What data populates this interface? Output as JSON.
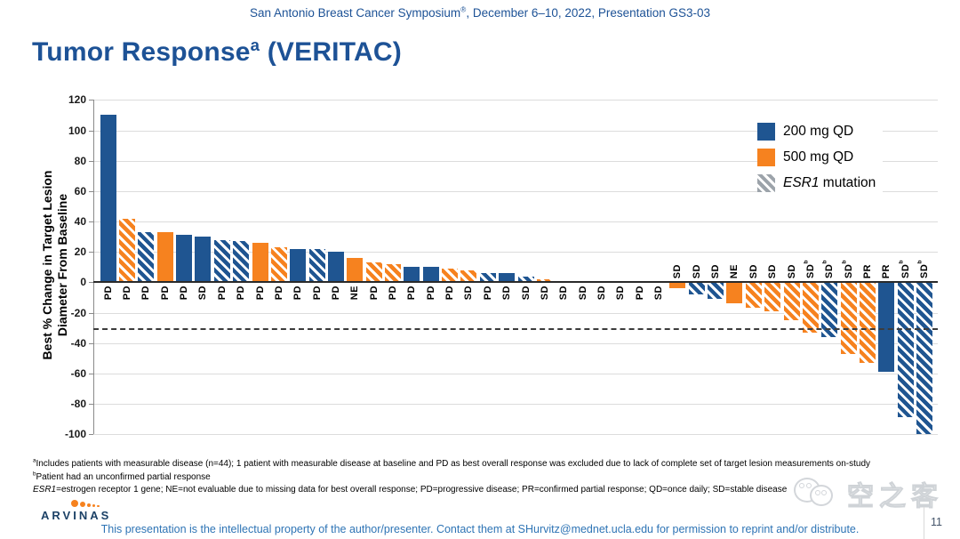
{
  "header": {
    "pre": "San Antonio Breast Cancer Symposium",
    "sup": "®",
    "post": ", December 6–10, 2022, Presentation GS3-03"
  },
  "title": {
    "pre": "Tumor Response",
    "sup": "a",
    "post": " (VERITAC)"
  },
  "legend": {
    "items": [
      {
        "swatch": "blue-solid",
        "label": "200 mg QD"
      },
      {
        "swatch": "orange-solid",
        "label": "500 mg QD"
      },
      {
        "swatch": "gray-hatch",
        "label_italic": "ESR1",
        "label_rest": " mutation"
      }
    ]
  },
  "colors": {
    "dose_200": "#1f5591",
    "dose_500": "#f6821f",
    "hatch_stripe": "#ffffff",
    "legend_hatch_base": "#9ca3aa",
    "title_blue": "#1d5296",
    "footer_blue": "#2e74b5",
    "gridline": "#dcdcdc",
    "zero_line": "#2a2a2a",
    "ref_line": "#3c3c3c"
  },
  "chart_data": {
    "type": "bar",
    "title": "Tumor Response (VERITAC) waterfall",
    "ylabel_line1": "Best % Change in Target Lesion",
    "ylabel_line2": "Diameter From Baseline",
    "ylim": [
      -100,
      120
    ],
    "ytick_step": 20,
    "yticks": [
      120,
      100,
      80,
      60,
      40,
      20,
      0,
      -20,
      -40,
      -60,
      -80,
      -100
    ],
    "reference_line": -30,
    "grid": true,
    "legend_position": "top-right",
    "bar_labels": [
      "PD",
      "PD",
      "PD",
      "PD",
      "PD",
      "SD",
      "PD",
      "PD",
      "PD",
      "PD",
      "PD",
      "PD",
      "PD",
      "NE",
      "PD",
      "PD",
      "PD",
      "PD",
      "PD",
      "SD",
      "PD",
      "SD",
      "SD",
      "SD",
      "SD",
      "SD",
      "SD",
      "SD",
      "PD",
      "SD",
      "SD",
      "SD",
      "SD",
      "NE",
      "SD",
      "SD",
      "SD",
      "SD^b",
      "SD^b",
      "SD^b",
      "PR",
      "PR",
      "SD^b",
      "SD^b"
    ],
    "values": [
      110,
      42,
      33,
      33,
      31,
      30,
      28,
      27,
      26,
      23,
      22,
      22,
      20,
      16,
      13,
      12,
      10,
      10,
      9,
      8,
      6,
      6,
      4,
      2,
      0,
      0,
      0,
      0,
      0,
      0,
      -4,
      -8,
      -11,
      -14,
      -17,
      -19,
      -25,
      -33,
      -36,
      -47,
      -53,
      -59,
      -89,
      -100
    ],
    "dose_mg_qd": [
      200,
      500,
      200,
      500,
      200,
      200,
      200,
      200,
      500,
      500,
      200,
      200,
      200,
      500,
      500,
      500,
      200,
      200,
      500,
      500,
      200,
      200,
      200,
      500,
      null,
      null,
      null,
      null,
      null,
      null,
      500,
      200,
      200,
      500,
      500,
      500,
      500,
      500,
      200,
      500,
      500,
      200,
      200,
      200
    ],
    "esr1_mutation": [
      false,
      true,
      true,
      false,
      false,
      false,
      true,
      true,
      false,
      true,
      false,
      true,
      false,
      false,
      true,
      true,
      false,
      false,
      true,
      true,
      true,
      false,
      true,
      true,
      false,
      false,
      false,
      false,
      false,
      false,
      false,
      true,
      true,
      false,
      true,
      true,
      true,
      true,
      true,
      true,
      true,
      false,
      true,
      true
    ]
  },
  "footnotes": {
    "line1_sup": "a",
    "line1": "Includes patients with measurable disease (n=44); 1 patient with measurable disease at baseline and PD as best overall response was excluded due to lack of complete set of target lesion measurements on-study",
    "line2_sup": "b",
    "line2": "Patient had an unconfirmed partial response",
    "line3_italic": "ESR1",
    "line3": "=estrogen receptor 1 gene; NE=not evaluable due to missing data for best overall response; PD=progressive disease; PR=confirmed partial response; QD=once daily; SD=stable disease"
  },
  "branding": {
    "logo_text": "ARVINAS",
    "watermark_text": "空之客",
    "page_number": "11"
  },
  "footer": {
    "text": "This presentation is the intellectual property of the author/presenter. Contact them at SHurvitz@mednet.ucla.edu for permission to reprint and/or distribute."
  }
}
